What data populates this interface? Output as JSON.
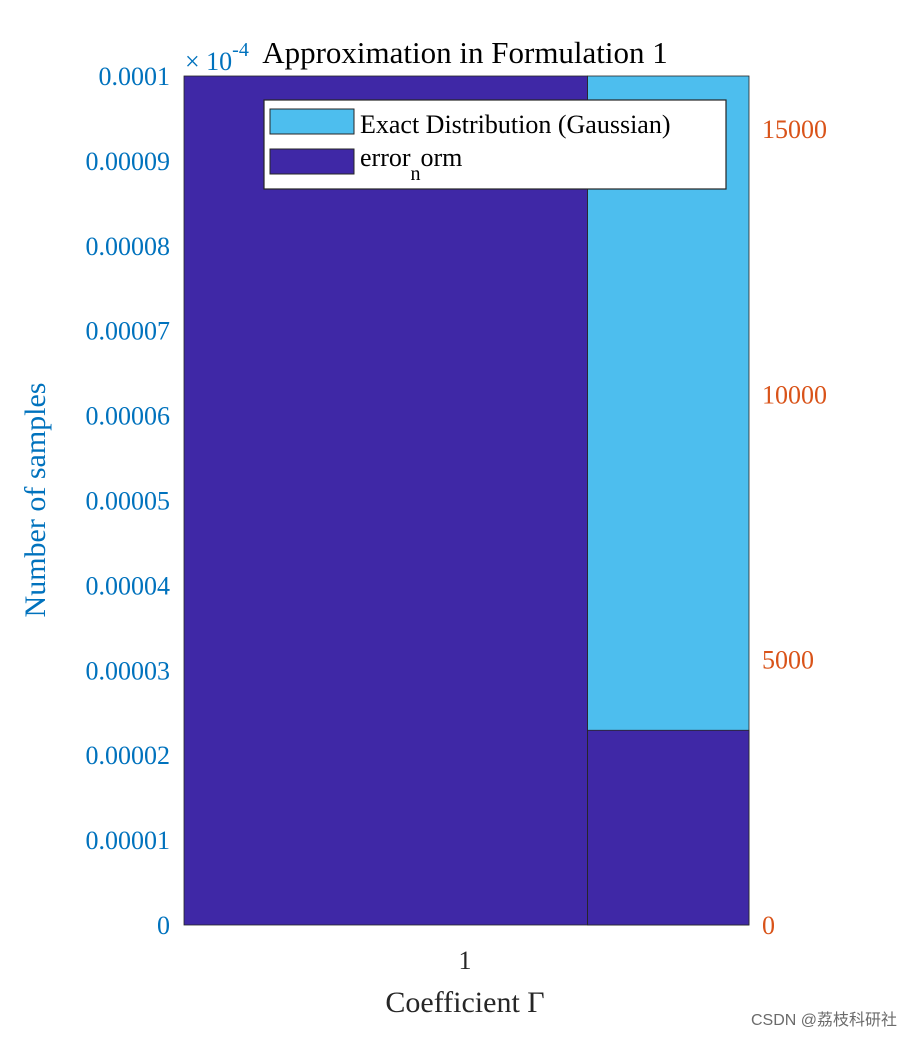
{
  "chart_data": {
    "type": "bar",
    "title": "Approximation in Formulation 1",
    "xlabel": "Coefficient Γ",
    "ylabel": "Number of samples",
    "x_ticks": [
      "1"
    ],
    "left_axis": {
      "range": [
        0,
        0.0001
      ],
      "ticks": [
        "0",
        "0.00001",
        "0.00002",
        "0.00003",
        "0.00004",
        "0.00005",
        "0.00006",
        "0.00007",
        "0.00008",
        "0.00009",
        "0.0001"
      ],
      "exponent_base": "× 10",
      "exponent_power": "-4",
      "color": "#0072BD"
    },
    "right_axis": {
      "range": [
        0,
        16000
      ],
      "ticks": [
        "0",
        "5000",
        "10000",
        "15000"
      ],
      "color": "#D95319"
    },
    "x_range": [
      0.6,
      1.3
    ],
    "bars": [
      {
        "series": "error_norm",
        "x0": 0.6,
        "x1": 1.1,
        "axis": "left",
        "value": 0.0001
      },
      {
        "series": "Exact Distribution (Gaussian)",
        "x0": 1.1,
        "x1": 1.3,
        "axis": "right",
        "value": 16000
      },
      {
        "series": "error_norm",
        "x0": 1.1,
        "x1": 1.3,
        "axis": "right",
        "value": 3670
      }
    ],
    "legend": {
      "position": "top-right",
      "items": [
        {
          "label": "Exact Distribution (Gaussian)",
          "color": "#4DBEEE"
        },
        {
          "label_main": "error",
          "label_sub": "n",
          "label_tail": "orm",
          "color": "#3F28A6"
        }
      ]
    }
  },
  "colors": {
    "exact": "#4DBEEE",
    "error": "#3F28A6",
    "left_axis": "#0072BD",
    "right_axis": "#D95319",
    "text": "#262626"
  },
  "watermark": "CSDN @荔枝科研社"
}
